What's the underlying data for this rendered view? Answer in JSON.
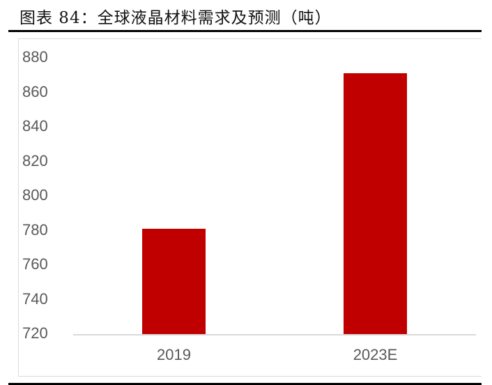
{
  "header": {
    "title": "图表 84：全球液晶材料需求及预测（吨）"
  },
  "colors": {
    "bar": "#c00000",
    "axis": "#d9d9d9",
    "tick_text": "#595959",
    "rule": "#000000"
  },
  "chart_data": {
    "type": "bar",
    "title": "图表 84：全球液晶材料需求及预测（吨）",
    "categories": [
      "2019",
      "2023E"
    ],
    "values": [
      781,
      871
    ],
    "xlabel": "",
    "ylabel": "",
    "ylim": [
      720,
      880
    ],
    "yticks": [
      "880",
      "860",
      "840",
      "820",
      "800",
      "780",
      "760",
      "740",
      "720"
    ],
    "grid": false,
    "legend": null
  }
}
